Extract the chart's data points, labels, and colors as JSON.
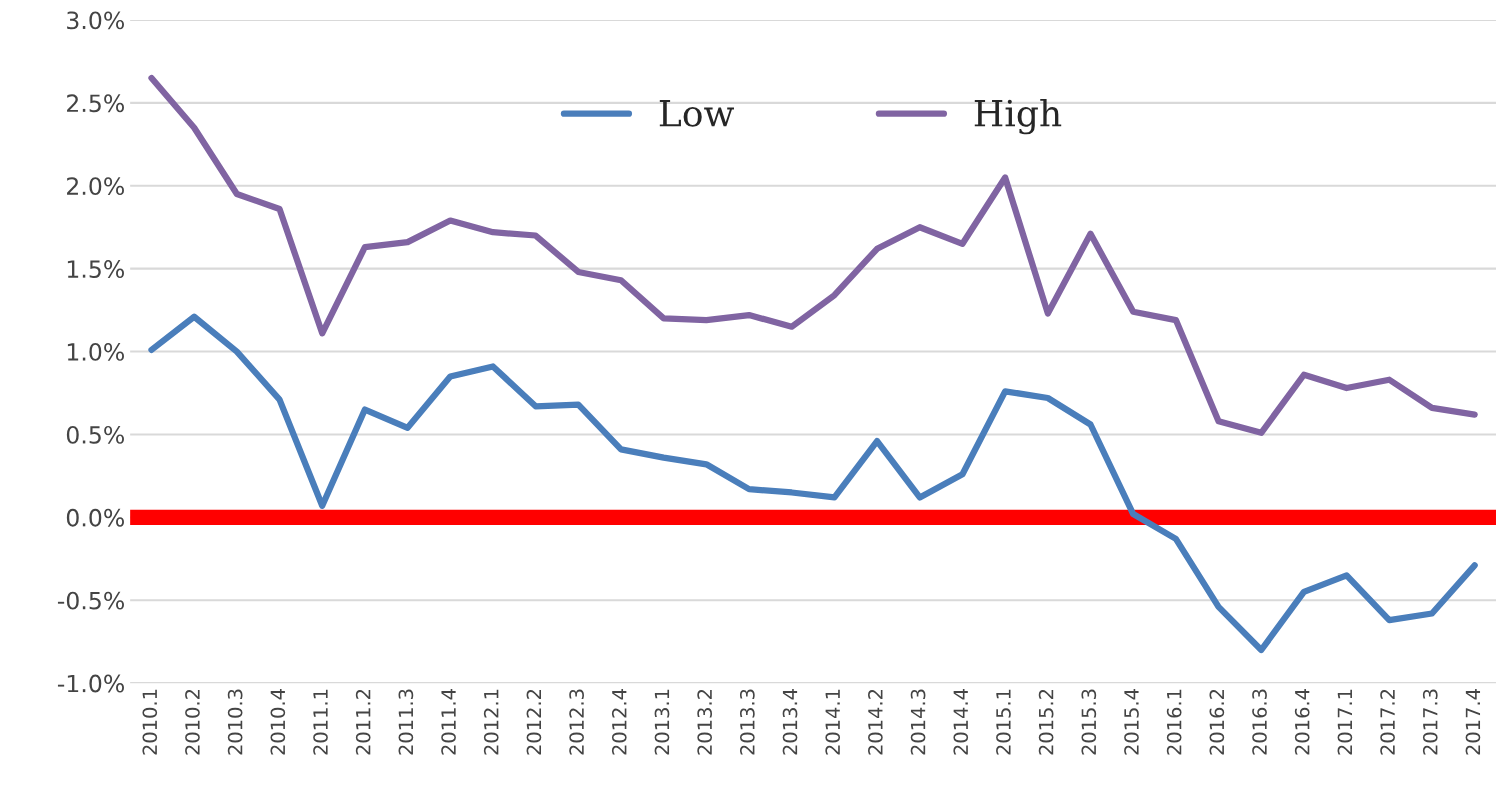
{
  "chart_data": {
    "type": "line",
    "categories": [
      "2010.1",
      "2010.2",
      "2010.3",
      "2010.4",
      "2011.1",
      "2011.2",
      "2011.3",
      "2011.4",
      "2012.1",
      "2012.2",
      "2012.3",
      "2012.4",
      "2013.1",
      "2013.2",
      "2013.3",
      "2013.4",
      "2014.1",
      "2014.2",
      "2014.3",
      "2014.4",
      "2015.1",
      "2015.2",
      "2015.3",
      "2015.4",
      "2016.1",
      "2016.2",
      "2016.3",
      "2016.4",
      "2017.1",
      "2017.2",
      "2017.3",
      "2017.4"
    ],
    "series": [
      {
        "name": "Low",
        "color": "#4a7ebb",
        "values": [
          1.01,
          1.21,
          1.0,
          0.71,
          0.07,
          0.65,
          0.54,
          0.85,
          0.91,
          0.67,
          0.68,
          0.41,
          0.36,
          0.32,
          0.17,
          0.15,
          0.12,
          0.46,
          0.12,
          0.26,
          0.76,
          0.72,
          0.56,
          0.02,
          -0.13,
          -0.54,
          -0.8,
          -0.45,
          -0.35,
          -0.62,
          -0.58,
          -0.29
        ]
      },
      {
        "name": "High",
        "color": "#8064a2",
        "values": [
          2.65,
          2.35,
          1.95,
          1.86,
          1.11,
          1.63,
          1.66,
          1.79,
          1.72,
          1.7,
          1.48,
          1.43,
          1.2,
          1.19,
          1.22,
          1.15,
          1.34,
          1.62,
          1.75,
          1.65,
          2.05,
          1.23,
          1.71,
          1.24,
          1.19,
          0.58,
          0.51,
          0.86,
          0.78,
          0.83,
          0.66,
          0.62
        ]
      }
    ],
    "ylim": [
      -1.0,
      3.0
    ],
    "yticks": [
      {
        "value": -1.0,
        "label": "-1.0%"
      },
      {
        "value": -0.5,
        "label": "-0.5%"
      },
      {
        "value": 0.0,
        "label": "0.0%"
      },
      {
        "value": 0.5,
        "label": "0.5%"
      },
      {
        "value": 1.0,
        "label": "1.0%"
      },
      {
        "value": 1.5,
        "label": "1.5%"
      },
      {
        "value": 2.0,
        "label": "2.0%"
      },
      {
        "value": 2.5,
        "label": "2.5%"
      },
      {
        "value": 3.0,
        "label": "3.0%"
      }
    ],
    "ref_lines": [
      {
        "axis": "y",
        "value": 0.0,
        "color": "#ff0000"
      }
    ],
    "grid": "y",
    "legend": "top",
    "marker": "none",
    "line_style": "solid"
  }
}
